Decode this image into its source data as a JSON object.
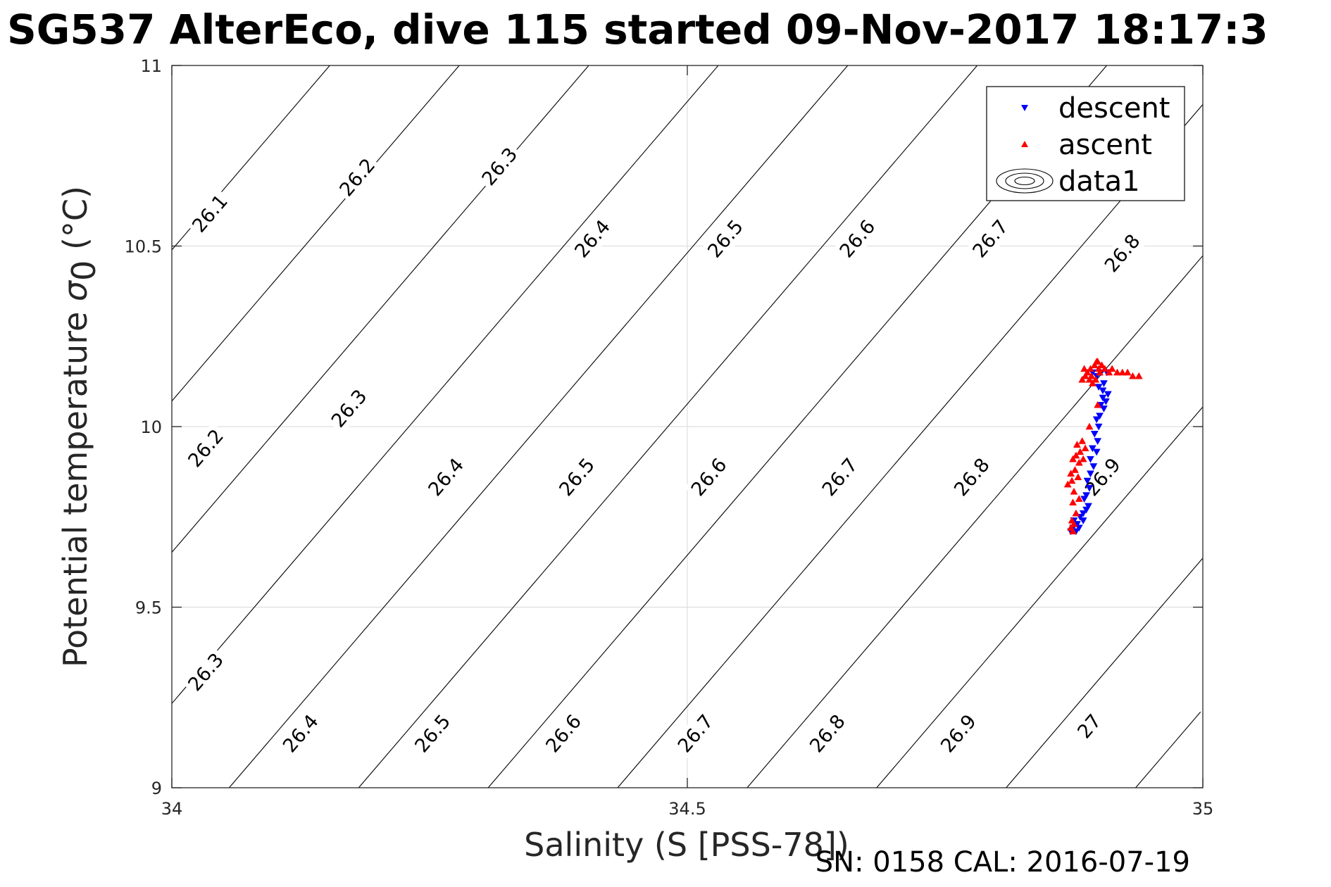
{
  "chart_data": {
    "type": "scatter",
    "title": "SG537 AlterEco, dive 115 started 09-Nov-2017 18:17:3",
    "xlabel": "Salinity (S [PSS-78])",
    "ylabel_main": "Potential temperature ",
    "ylabel_sigma": "σ",
    "ylabel_sub": "0",
    "ylabel_unit": " (°C)",
    "xlim": [
      34,
      35
    ],
    "ylim": [
      9,
      11
    ],
    "xticks": [
      34,
      34.5,
      35
    ],
    "xtick_labels": [
      "34",
      "34.5",
      "35"
    ],
    "yticks": [
      9,
      9.5,
      10,
      10.5,
      11
    ],
    "ytick_labels": [
      "9",
      "9.5",
      "10",
      "10.5",
      "11"
    ],
    "grid": true,
    "legend_position": "top-right",
    "contours": [
      {
        "level": "26.1",
        "label_points": [
          [
            34.037,
            10.59
          ]
        ]
      },
      {
        "level": "26.2",
        "label_points": [
          [
            34.033,
            9.94
          ],
          [
            34.18,
            10.69
          ]
        ]
      },
      {
        "level": "26.3",
        "label_points": [
          [
            34.033,
            9.32
          ],
          [
            34.172,
            10.05
          ],
          [
            34.318,
            10.72
          ]
        ]
      },
      {
        "level": "26.4",
        "label_points": [
          [
            34.125,
            9.15
          ],
          [
            34.266,
            9.86
          ],
          [
            34.408,
            10.52
          ]
        ]
      },
      {
        "level": "26.5",
        "label_points": [
          [
            34.253,
            9.15
          ],
          [
            34.393,
            9.86
          ],
          [
            34.537,
            10.52
          ]
        ]
      },
      {
        "level": "26.6",
        "label_points": [
          [
            34.38,
            9.15
          ],
          [
            34.521,
            9.86
          ],
          [
            34.665,
            10.52
          ]
        ]
      },
      {
        "level": "26.7",
        "label_points": [
          [
            34.508,
            9.15
          ],
          [
            34.648,
            9.86
          ],
          [
            34.794,
            10.52
          ]
        ]
      },
      {
        "level": "26.8",
        "label_points": [
          [
            34.636,
            9.15
          ],
          [
            34.776,
            9.86
          ],
          [
            34.922,
            10.48
          ]
        ]
      },
      {
        "level": "26.9",
        "label_points": [
          [
            34.763,
            9.15
          ],
          [
            34.903,
            9.86
          ]
        ]
      },
      {
        "level": "27",
        "label_points": [
          [
            34.89,
            9.17
          ]
        ]
      }
    ],
    "series": [
      {
        "name": "descent",
        "color": "#0000ff",
        "marker": "triangle-down",
        "points": [
          [
            34.893,
            10.15
          ],
          [
            34.897,
            10.14
          ],
          [
            34.901,
            10.15
          ],
          [
            34.907,
            10.15
          ],
          [
            34.904,
            10.12
          ],
          [
            34.899,
            10.11
          ],
          [
            34.903,
            10.1
          ],
          [
            34.908,
            10.09
          ],
          [
            34.903,
            10.08
          ],
          [
            34.906,
            10.07
          ],
          [
            34.901,
            10.06
          ],
          [
            34.904,
            10.05
          ],
          [
            34.9,
            10.03
          ],
          [
            34.897,
            10.02
          ],
          [
            34.899,
            10.0
          ],
          [
            34.895,
            9.98
          ],
          [
            34.898,
            9.96
          ],
          [
            34.893,
            9.94
          ],
          [
            34.897,
            9.93
          ],
          [
            34.891,
            9.91
          ],
          [
            34.894,
            9.89
          ],
          [
            34.891,
            9.87
          ],
          [
            34.888,
            9.85
          ],
          [
            34.89,
            9.83
          ],
          [
            34.887,
            9.81
          ],
          [
            34.885,
            9.8
          ],
          [
            34.889,
            9.78
          ],
          [
            34.887,
            9.77
          ],
          [
            34.884,
            9.76
          ],
          [
            34.881,
            9.75
          ],
          [
            34.884,
            9.74
          ],
          [
            34.878,
            9.73
          ],
          [
            34.88,
            9.72
          ],
          [
            34.876,
            9.73
          ],
          [
            34.874,
            9.72
          ],
          [
            34.875,
            9.74
          ],
          [
            34.877,
            9.71
          ],
          [
            34.872,
            9.71
          ]
        ]
      },
      {
        "name": "ascent",
        "color": "#ff0000",
        "marker": "triangle-up",
        "points": [
          [
            34.938,
            10.14
          ],
          [
            34.932,
            10.14
          ],
          [
            34.927,
            10.15
          ],
          [
            34.922,
            10.15
          ],
          [
            34.917,
            10.15
          ],
          [
            34.912,
            10.16
          ],
          [
            34.909,
            10.15
          ],
          [
            34.905,
            10.16
          ],
          [
            34.902,
            10.17
          ],
          [
            34.898,
            10.18
          ],
          [
            34.895,
            10.17
          ],
          [
            34.891,
            10.16
          ],
          [
            34.888,
            10.15
          ],
          [
            34.886,
            10.14
          ],
          [
            34.89,
            10.13
          ],
          [
            34.893,
            10.12
          ],
          [
            34.899,
            10.16
          ],
          [
            34.896,
            10.13
          ],
          [
            34.892,
            10.14
          ],
          [
            34.885,
            10.16
          ],
          [
            34.883,
            10.13
          ],
          [
            34.9,
            10.15
          ],
          [
            34.897,
            10.18
          ],
          [
            34.898,
            10.06
          ],
          [
            34.89,
            10.0
          ],
          [
            34.883,
            9.96
          ],
          [
            34.878,
            9.95
          ],
          [
            34.886,
            9.94
          ],
          [
            34.881,
            9.93
          ],
          [
            34.877,
            9.92
          ],
          [
            34.874,
            9.91
          ],
          [
            34.88,
            9.9
          ],
          [
            34.884,
            9.91
          ],
          [
            34.876,
            9.88
          ],
          [
            34.872,
            9.87
          ],
          [
            34.879,
            9.86
          ],
          [
            34.873,
            9.85
          ],
          [
            34.869,
            9.84
          ],
          [
            34.875,
            9.82
          ],
          [
            34.88,
            9.8
          ],
          [
            34.874,
            9.79
          ],
          [
            34.877,
            9.76
          ],
          [
            34.873,
            9.74
          ],
          [
            34.875,
            9.73
          ],
          [
            34.872,
            9.72
          ],
          [
            34.874,
            9.71
          ]
        ]
      }
    ],
    "legend": [
      {
        "label": "descent",
        "marker": "triangle-down",
        "color": "#0000ff"
      },
      {
        "label": "ascent",
        "marker": "triangle-up",
        "color": "#ff0000"
      },
      {
        "label": "data1",
        "marker": "contour-ellipses",
        "color": "#000000"
      }
    ],
    "footer_text": "SN: 0158  CAL: 2016-07-19"
  }
}
